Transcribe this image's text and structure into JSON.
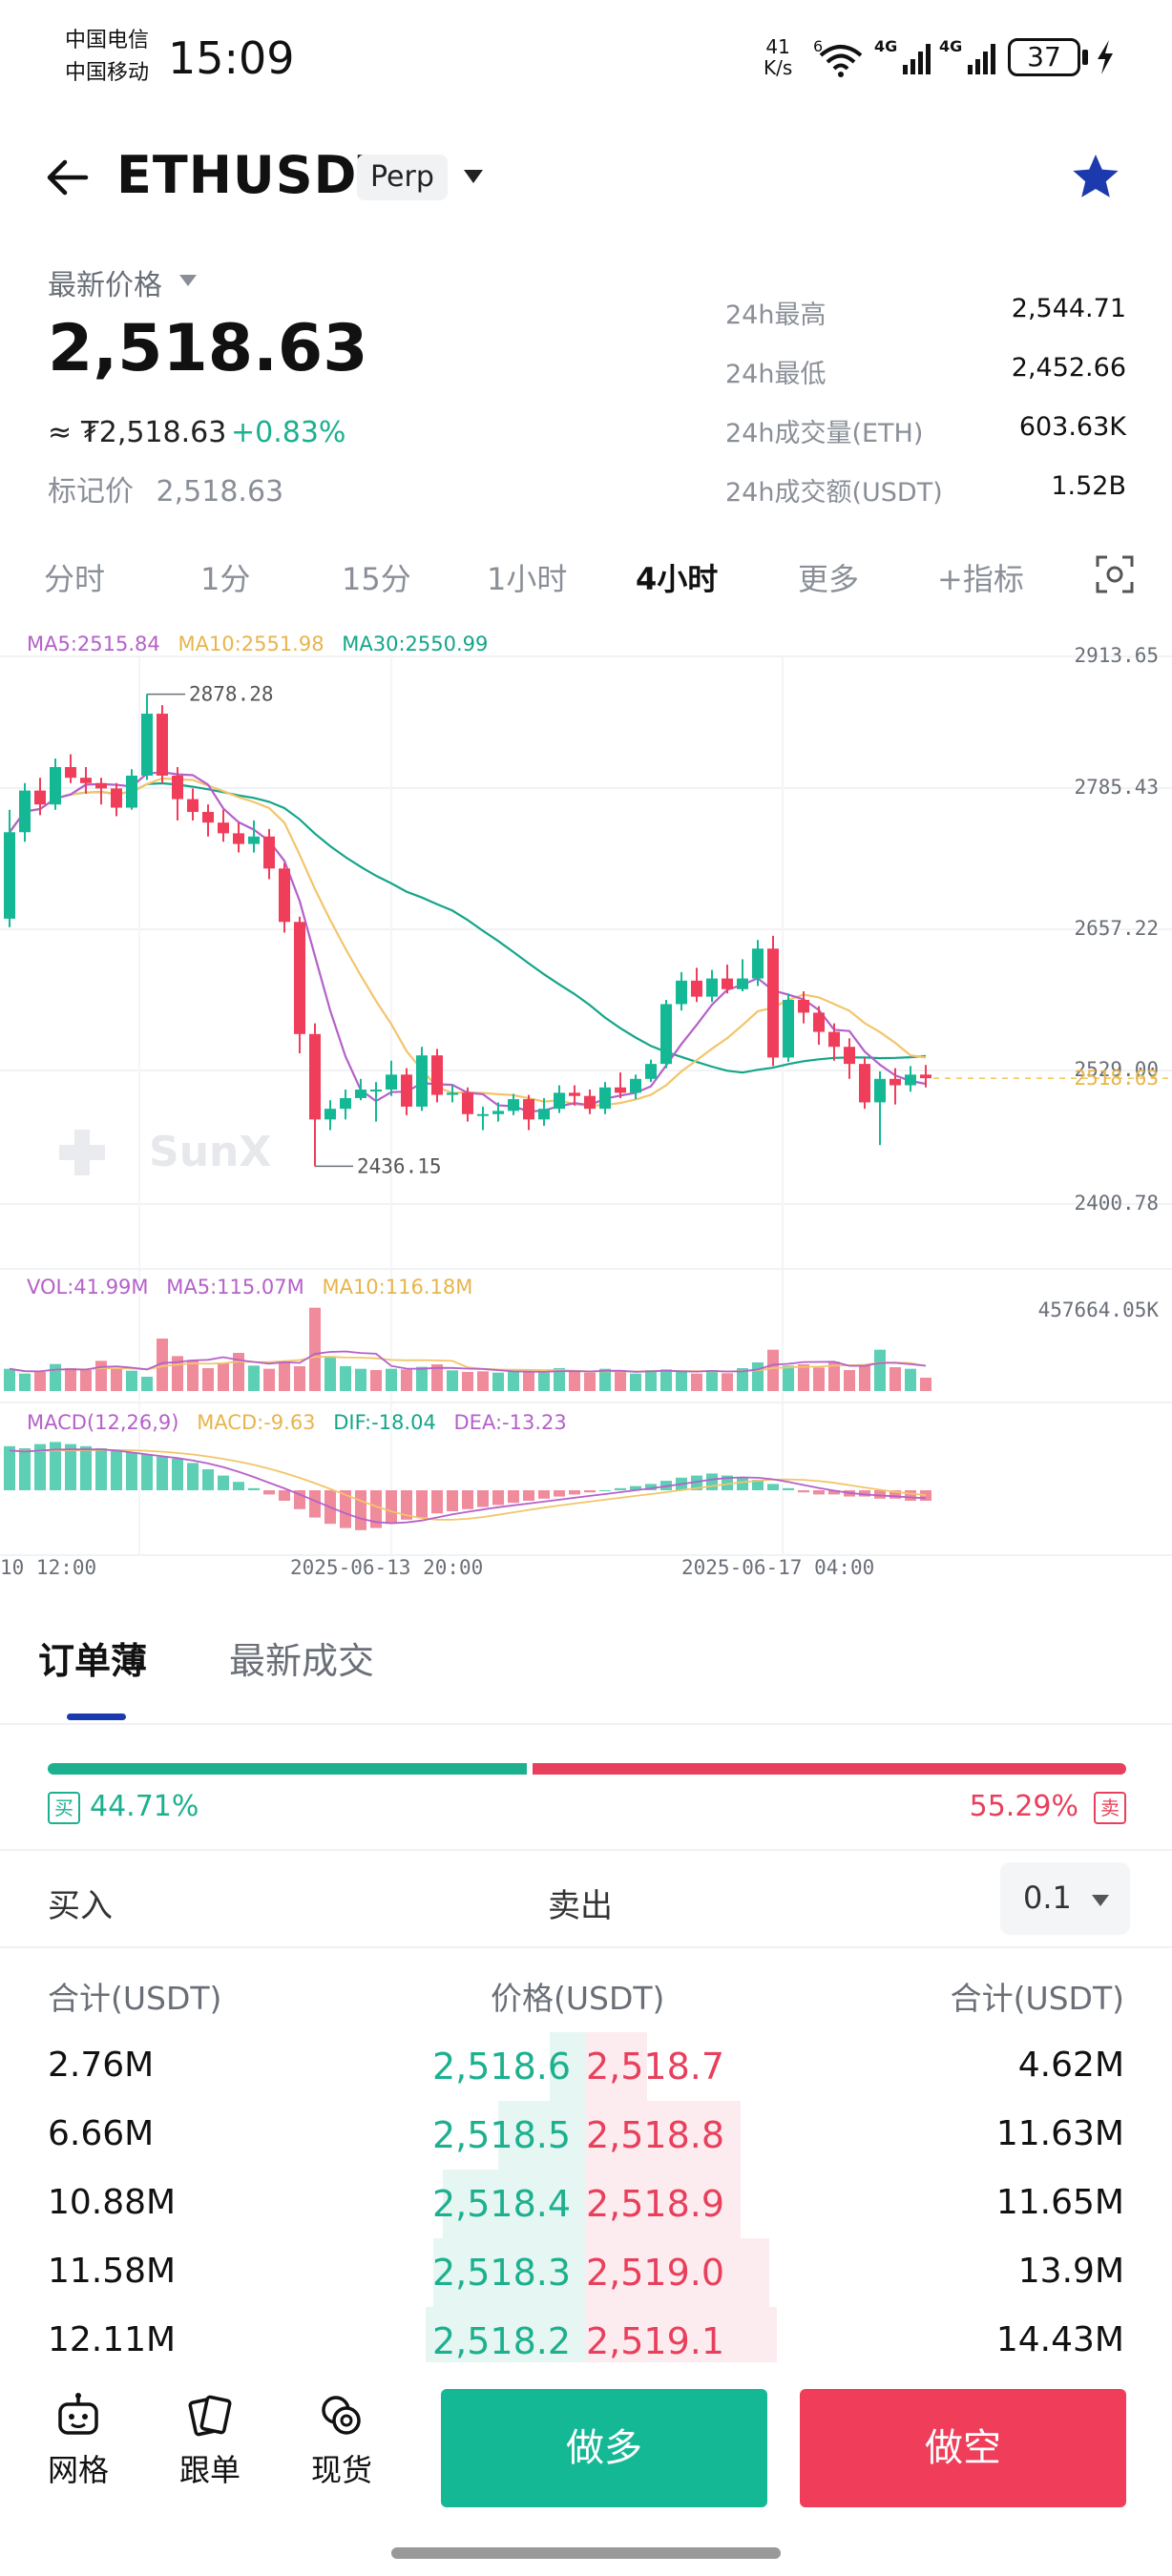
{
  "status_bar": {
    "carrier_1": "中国电信",
    "carrier_2": "中国移动",
    "time": "15:09",
    "net_speed_value": "41",
    "net_speed_unit": "K/s",
    "wifi_badge": "6",
    "signal_1": "4G",
    "signal_2": "4G",
    "battery": "37"
  },
  "header": {
    "symbol": "ETHUSDT",
    "contract_type": "Perp",
    "favorite": true
  },
  "price_block": {
    "latest_label": "最新价格",
    "last_price": "2,518.63",
    "approx_price": "≈ ₮2,518.63",
    "change_pct": "+0.83%",
    "mark_label": "标记价",
    "mark_price": "2,518.63",
    "stats": [
      {
        "label": "24h最高",
        "value": "2,544.71"
      },
      {
        "label": "24h最低",
        "value": "2,452.66"
      },
      {
        "label": "24h成交量(ETH)",
        "value": "603.63K"
      },
      {
        "label": "24h成交额(USDT)",
        "value": "1.52B"
      }
    ]
  },
  "timeframes": {
    "items": [
      "分时",
      "1分",
      "15分",
      "1小时",
      "4小时",
      "更多",
      "+指标"
    ],
    "active": "4小时"
  },
  "chart_data": {
    "type": "candlestick",
    "watermark": "SunX",
    "price_legend": {
      "ma5": "MA5:2515.84",
      "ma10": "MA10:2551.98",
      "ma30": "MA30:2550.99"
    },
    "y_ticks": [
      "2913.65",
      "2785.43",
      "2657.22",
      "2529.00",
      "2400.78"
    ],
    "ylim": [
      2400.78,
      2913.65
    ],
    "current_price_label": "2518.63",
    "current_price": 2518.63,
    "high_annotation": "2878.28",
    "low_annotation": "2436.15",
    "candles": [
      [
        2668,
        2749,
        2770,
        2660
      ],
      [
        2749,
        2788,
        2795,
        2740
      ],
      [
        2788,
        2775,
        2800,
        2765
      ],
      [
        2775,
        2810,
        2818,
        2770
      ],
      [
        2810,
        2800,
        2822,
        2795
      ],
      [
        2800,
        2795,
        2810,
        2785
      ],
      [
        2795,
        2790,
        2800,
        2775
      ],
      [
        2790,
        2772,
        2795,
        2764
      ],
      [
        2772,
        2802,
        2808,
        2770
      ],
      [
        2802,
        2860,
        2878.28,
        2798
      ],
      [
        2860,
        2802,
        2868,
        2795
      ],
      [
        2802,
        2780,
        2810,
        2760
      ],
      [
        2780,
        2768,
        2790,
        2760
      ],
      [
        2768,
        2758,
        2775,
        2745
      ],
      [
        2758,
        2748,
        2770,
        2740
      ],
      [
        2748,
        2738,
        2758,
        2730
      ],
      [
        2738,
        2745,
        2760,
        2730
      ],
      [
        2745,
        2715,
        2752,
        2705
      ],
      [
        2715,
        2665,
        2720,
        2655
      ],
      [
        2665,
        2560,
        2670,
        2542
      ],
      [
        2560,
        2480,
        2570,
        2436.15
      ],
      [
        2480,
        2490,
        2498,
        2470
      ],
      [
        2490,
        2500,
        2508,
        2480
      ],
      [
        2500,
        2508,
        2518,
        2498
      ],
      [
        2508,
        2508,
        2515,
        2478
      ],
      [
        2508,
        2522,
        2535,
        2502
      ],
      [
        2522,
        2492,
        2528,
        2484
      ],
      [
        2492,
        2540,
        2548,
        2488
      ],
      [
        2540,
        2503,
        2546,
        2496
      ],
      [
        2503,
        2505,
        2512,
        2496
      ],
      [
        2505,
        2485,
        2510,
        2478
      ],
      [
        2485,
        2485,
        2492,
        2470
      ],
      [
        2485,
        2488,
        2496,
        2478
      ],
      [
        2488,
        2499,
        2504,
        2484
      ],
      [
        2499,
        2480,
        2503,
        2470
      ],
      [
        2480,
        2490,
        2500,
        2474
      ],
      [
        2490,
        2505,
        2512,
        2486
      ],
      [
        2505,
        2502,
        2512,
        2493
      ],
      [
        2502,
        2490,
        2508,
        2485
      ],
      [
        2490,
        2510,
        2515,
        2485
      ],
      [
        2510,
        2505,
        2524,
        2500
      ],
      [
        2505,
        2518,
        2522,
        2499
      ],
      [
        2518,
        2532,
        2536,
        2515
      ],
      [
        2532,
        2588,
        2592,
        2528
      ],
      [
        2588,
        2610,
        2618,
        2582
      ],
      [
        2610,
        2595,
        2622,
        2590
      ],
      [
        2595,
        2612,
        2620,
        2590
      ],
      [
        2612,
        2602,
        2625,
        2598
      ],
      [
        2602,
        2612,
        2630,
        2600
      ],
      [
        2612,
        2640,
        2648,
        2605
      ],
      [
        2640,
        2538,
        2652,
        2530
      ],
      [
        2538,
        2592,
        2598,
        2534
      ],
      [
        2592,
        2580,
        2600,
        2570
      ],
      [
        2580,
        2562,
        2586,
        2550
      ],
      [
        2562,
        2548,
        2570,
        2535
      ],
      [
        2548,
        2532,
        2556,
        2518
      ],
      [
        2532,
        2496,
        2538,
        2490
      ],
      [
        2496,
        2518,
        2525,
        2456
      ],
      [
        2518,
        2512,
        2528,
        2494
      ],
      [
        2512,
        2522,
        2530,
        2506
      ],
      [
        2522,
        2518.63,
        2531,
        2510
      ]
    ],
    "volume": {
      "legend": {
        "vol": "VOL:41.99M",
        "ma5": "MA5:115.07M",
        "ma10": "MA10:116.18M"
      },
      "max_tick": "457664.05K",
      "values": [
        70,
        55,
        60,
        85,
        72,
        66,
        95,
        70,
        64,
        45,
        165,
        110,
        98,
        72,
        88,
        120,
        80,
        70,
        95,
        78,
        262,
        110,
        78,
        70,
        66,
        70,
        68,
        76,
        84,
        65,
        60,
        62,
        58,
        64,
        60,
        58,
        72,
        60,
        58,
        70,
        60,
        55,
        66,
        68,
        62,
        55,
        66,
        56,
        72,
        90,
        130,
        80,
        84,
        74,
        92,
        66,
        80,
        130,
        75,
        70,
        42
      ],
      "up": [
        true,
        true,
        false,
        true,
        false,
        false,
        false,
        false,
        true,
        true,
        false,
        false,
        false,
        false,
        false,
        false,
        true,
        false,
        false,
        false,
        false,
        true,
        true,
        true,
        false,
        true,
        false,
        true,
        false,
        true,
        false,
        false,
        true,
        true,
        false,
        true,
        true,
        false,
        false,
        true,
        false,
        true,
        true,
        true,
        true,
        false,
        true,
        false,
        true,
        true,
        false,
        true,
        false,
        false,
        false,
        false,
        false,
        true,
        false,
        true,
        false
      ]
    },
    "macd": {
      "legend": {
        "params": "MACD(12,26,9)",
        "macd": "MACD:-9.63",
        "dif": "DIF:-18.04",
        "dea": "DEA:-13.23"
      },
      "histogram": [
        42,
        40,
        44,
        46,
        44,
        42,
        40,
        38,
        36,
        34,
        32,
        30,
        26,
        20,
        14,
        8,
        2,
        -4,
        -10,
        -18,
        -26,
        -32,
        -36,
        -38,
        -36,
        -32,
        -28,
        -26,
        -22,
        -20,
        -18,
        -16,
        -14,
        -12,
        -10,
        -8,
        -6,
        -4,
        -2,
        0,
        2,
        4,
        6,
        9,
        12,
        14,
        16,
        14,
        12,
        10,
        6,
        2,
        -2,
        -4,
        -4,
        -6,
        -6,
        -8,
        -8,
        -10,
        -10
      ]
    },
    "x_ticks": [
      "10 12:00",
      "2025-06-13 20:00",
      "2025-06-17 04:00"
    ],
    "colors": {
      "up": "#14b895",
      "down": "#ef3d5a",
      "ma5": "#b561c9",
      "ma10": "#f2c56b",
      "ma30": "#14a58a",
      "current": "#f5c451"
    }
  },
  "order_book": {
    "tabs": [
      "订单薄",
      "最新成交"
    ],
    "active_tab": "订单薄",
    "buy_ratio_value": 44.71,
    "buy_ratio": "44.71%",
    "sell_ratio": "55.29%",
    "buy_tag": "买",
    "sell_tag": "卖",
    "side_buy_label": "买入",
    "side_sell_label": "卖出",
    "depth_step": "0.1",
    "col_left": "合计(USDT)",
    "col_mid": "价格(USDT)",
    "col_right": "合计(USDT)",
    "rows": [
      {
        "bid_total": "2.76M",
        "bid_price": "2,518.6",
        "ask_price": "2,518.7",
        "ask_total": "4.62M",
        "bid_depth": 0.19,
        "ask_depth": 0.32
      },
      {
        "bid_total": "6.66M",
        "bid_price": "2,518.5",
        "ask_price": "2,518.8",
        "ask_total": "11.63M",
        "bid_depth": 0.46,
        "ask_depth": 0.81
      },
      {
        "bid_total": "10.88M",
        "bid_price": "2,518.4",
        "ask_price": "2,518.9",
        "ask_total": "11.65M",
        "bid_depth": 0.75,
        "ask_depth": 0.81
      },
      {
        "bid_total": "11.58M",
        "bid_price": "2,518.3",
        "ask_price": "2,519.0",
        "ask_total": "13.9M",
        "bid_depth": 0.8,
        "ask_depth": 0.96
      },
      {
        "bid_total": "12.11M",
        "bid_price": "2,518.2",
        "ask_price": "2,519.1",
        "ask_total": "14.43M",
        "bid_depth": 0.84,
        "ask_depth": 1.0
      }
    ]
  },
  "bottom_bar": {
    "nav": [
      {
        "label": "网格",
        "icon": "robot-icon"
      },
      {
        "label": "跟单",
        "icon": "cards-icon"
      },
      {
        "label": "现货",
        "icon": "coins-icon"
      }
    ],
    "long_label": "做多",
    "short_label": "做空"
  }
}
